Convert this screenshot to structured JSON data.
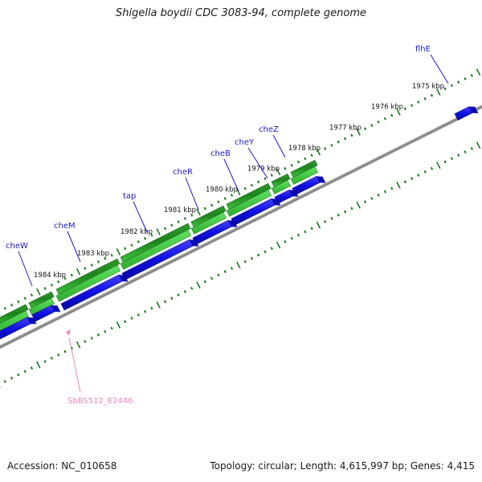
{
  "title": "Shigella boydii CDC 3083-94, complete genome",
  "footer": {
    "accession": "Accession: NC_010658",
    "summary": "Topology: circular; Length: 4,615,997 bp; Genes: 4,415"
  },
  "colors": {
    "gene_blue": "#1010e0",
    "cds_green_dark": "#1f8a1f",
    "cds_green_light": "#5fe05f",
    "backbone_gray": "#8a8a8a",
    "tick_green": "#1a7a1a",
    "label_blue": "#1a1aa0",
    "label_pink": "#e888c0"
  },
  "map": {
    "kbp_ticks": [
      {
        "label": "1975 kbp"
      },
      {
        "label": "1976 kbp"
      },
      {
        "label": "1977 kbp"
      },
      {
        "label": "1978 kbp"
      },
      {
        "label": "1979 kbp"
      },
      {
        "label": "1980 kbp"
      },
      {
        "label": "1981 kbp"
      },
      {
        "label": "1982 kbp"
      },
      {
        "label": "1983 kbp"
      },
      {
        "label": "1984 kbp"
      }
    ],
    "gene_labels": [
      {
        "name": "flhE",
        "color": "blue"
      },
      {
        "name": "cheZ",
        "color": "blue"
      },
      {
        "name": "cheY",
        "color": "blue"
      },
      {
        "name": "cheB",
        "color": "blue"
      },
      {
        "name": "cheR",
        "color": "blue"
      },
      {
        "name": "tap",
        "color": "blue"
      },
      {
        "name": "cheM",
        "color": "blue"
      },
      {
        "name": "cheW",
        "color": "blue"
      },
      {
        "name": "SbBS512_E2446",
        "color": "pink"
      }
    ]
  }
}
